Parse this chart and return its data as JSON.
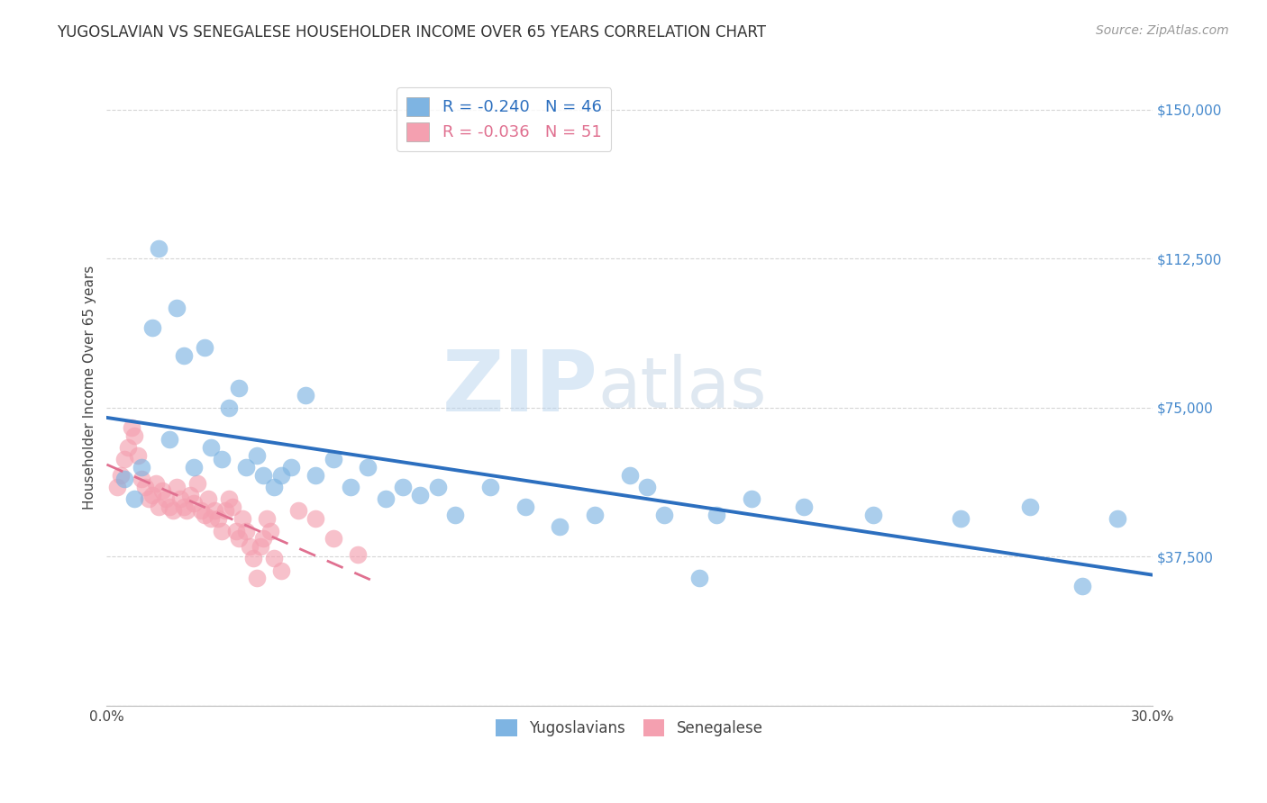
{
  "title": "YUGOSLAVIAN VS SENEGALESE HOUSEHOLDER INCOME OVER 65 YEARS CORRELATION CHART",
  "source": "Source: ZipAtlas.com",
  "ylabel": "Householder Income Over 65 years",
  "legend_label1": "Yugoslavians",
  "legend_label2": "Senegalese",
  "r1": -0.24,
  "n1": 46,
  "r2": -0.036,
  "n2": 51,
  "ymin": 0,
  "ymax": 160000,
  "xmin": 0.0,
  "xmax": 0.3,
  "color_yug": "#7EB4E2",
  "color_sen": "#F4A0B0",
  "line_color_yug": "#2C6FBF",
  "line_color_sen": "#E07090",
  "background_color": "#FFFFFF",
  "yug_x": [
    0.005,
    0.008,
    0.01,
    0.013,
    0.015,
    0.018,
    0.02,
    0.022,
    0.025,
    0.028,
    0.03,
    0.033,
    0.035,
    0.038,
    0.04,
    0.043,
    0.045,
    0.048,
    0.05,
    0.053,
    0.057,
    0.06,
    0.065,
    0.07,
    0.075,
    0.08,
    0.085,
    0.09,
    0.095,
    0.1,
    0.11,
    0.12,
    0.13,
    0.14,
    0.15,
    0.16,
    0.17,
    0.185,
    0.2,
    0.22,
    0.245,
    0.265,
    0.28,
    0.155,
    0.175,
    0.29
  ],
  "yug_y": [
    57000,
    52000,
    60000,
    95000,
    115000,
    67000,
    100000,
    88000,
    60000,
    90000,
    65000,
    62000,
    75000,
    80000,
    60000,
    63000,
    58000,
    55000,
    58000,
    60000,
    78000,
    58000,
    62000,
    55000,
    60000,
    52000,
    55000,
    53000,
    55000,
    48000,
    55000,
    50000,
    45000,
    48000,
    58000,
    48000,
    32000,
    52000,
    50000,
    48000,
    47000,
    50000,
    30000,
    55000,
    48000,
    47000
  ],
  "sen_x": [
    0.003,
    0.004,
    0.005,
    0.006,
    0.007,
    0.008,
    0.009,
    0.01,
    0.011,
    0.012,
    0.013,
    0.014,
    0.015,
    0.016,
    0.017,
    0.018,
    0.019,
    0.02,
    0.021,
    0.022,
    0.023,
    0.024,
    0.025,
    0.026,
    0.027,
    0.028,
    0.029,
    0.03,
    0.031,
    0.032,
    0.033,
    0.034,
    0.035,
    0.036,
    0.037,
    0.038,
    0.039,
    0.04,
    0.041,
    0.042,
    0.043,
    0.044,
    0.045,
    0.046,
    0.047,
    0.048,
    0.05,
    0.055,
    0.06,
    0.065,
    0.072
  ],
  "sen_y": [
    55000,
    58000,
    62000,
    65000,
    70000,
    68000,
    63000,
    57000,
    55000,
    52000,
    53000,
    56000,
    50000,
    54000,
    52000,
    50000,
    49000,
    55000,
    52000,
    50000,
    49000,
    53000,
    51000,
    56000,
    49000,
    48000,
    52000,
    47000,
    49000,
    47000,
    44000,
    49000,
    52000,
    50000,
    44000,
    42000,
    47000,
    44000,
    40000,
    37000,
    32000,
    40000,
    42000,
    47000,
    44000,
    37000,
    34000,
    49000,
    47000,
    42000,
    38000
  ]
}
